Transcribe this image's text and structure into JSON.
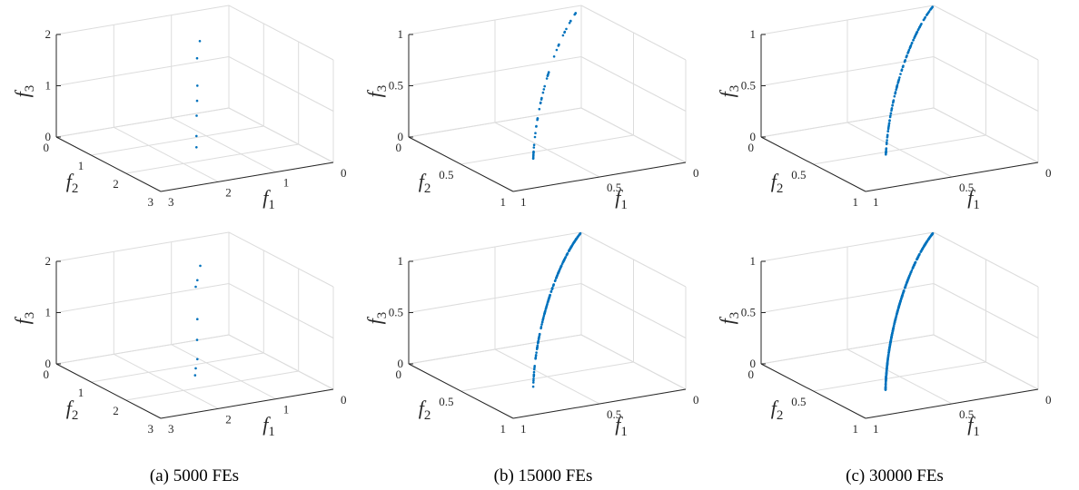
{
  "captions": [
    "(a) 5000 FEs",
    "(b) 15000 FEs",
    "(c) 30000 FEs"
  ],
  "colors": {
    "points": "#0072BD",
    "grid": "#dcdcdc",
    "axis": "#262626"
  },
  "chart_data": [
    {
      "type": "scatter",
      "projection": "3d",
      "row": 0,
      "col": 0,
      "xlabel": "f1",
      "ylabel": "f2",
      "zlabel": "f3",
      "xlim": [
        0,
        3
      ],
      "ylim": [
        0,
        3
      ],
      "zlim": [
        0,
        2
      ],
      "xticks": [
        0,
        1,
        2,
        3
      ],
      "yticks": [
        0,
        1,
        2,
        3
      ],
      "zticks": [
        0,
        1,
        2
      ],
      "grid": true,
      "points": [
        [
          1.43,
          1.43,
          0.01
        ],
        [
          1.43,
          1.43,
          0.23
        ],
        [
          1.42,
          1.42,
          0.62
        ],
        [
          1.4,
          1.4,
          0.9
        ],
        [
          1.39,
          1.39,
          1.19
        ],
        [
          1.4,
          1.4,
          1.73
        ],
        [
          1.28,
          1.28,
          2.0
        ]
      ]
    },
    {
      "type": "scatter",
      "projection": "3d",
      "row": 0,
      "col": 1,
      "xlabel": "f1",
      "ylabel": "f2",
      "zlabel": "f3",
      "xlim": [
        0,
        1
      ],
      "ylim": [
        0,
        1
      ],
      "zlim": [
        0,
        1
      ],
      "xticks": [
        0,
        0.5,
        1
      ],
      "yticks": [
        0,
        0.5,
        1
      ],
      "zticks": [
        0,
        0.5,
        1
      ],
      "grid": true,
      "arc": {
        "count": 48,
        "start": 3,
        "end": 85,
        "gamma": 1.3,
        "seed": 7
      }
    },
    {
      "type": "scatter",
      "projection": "3d",
      "row": 0,
      "col": 2,
      "xlabel": "f1",
      "ylabel": "f2",
      "zlabel": "f3",
      "xlim": [
        0,
        1
      ],
      "ylim": [
        0,
        1
      ],
      "zlim": [
        0,
        1
      ],
      "xticks": [
        0,
        0.5,
        1
      ],
      "yticks": [
        0,
        0.5,
        1
      ],
      "zticks": [
        0,
        0.5,
        1
      ],
      "grid": true,
      "arc": {
        "count": 120,
        "start": 2,
        "end": 89,
        "gamma": 0.8,
        "seed": 11
      }
    },
    {
      "type": "scatter",
      "projection": "3d",
      "row": 1,
      "col": 0,
      "xlabel": "f1",
      "ylabel": "f2",
      "zlabel": "f3",
      "xlim": [
        0,
        3
      ],
      "ylim": [
        0,
        3
      ],
      "zlim": [
        0,
        2
      ],
      "xticks": [
        0,
        1,
        2,
        3
      ],
      "yticks": [
        0,
        1,
        2,
        3
      ],
      "zticks": [
        0,
        1,
        2
      ],
      "grid": true,
      "points": [
        [
          1.49,
          1.49,
          0.02
        ],
        [
          1.46,
          1.46,
          0.14
        ],
        [
          1.39,
          1.39,
          0.28
        ],
        [
          1.4,
          1.4,
          0.66
        ],
        [
          1.39,
          1.39,
          1.06
        ],
        [
          1.46,
          1.46,
          1.73
        ],
        [
          1.39,
          1.39,
          1.82
        ],
        [
          1.26,
          1.26,
          2.03
        ]
      ]
    },
    {
      "type": "scatter",
      "projection": "3d",
      "row": 1,
      "col": 1,
      "xlabel": "f1",
      "ylabel": "f2",
      "zlabel": "f3",
      "xlim": [
        0,
        1
      ],
      "ylim": [
        0,
        1
      ],
      "zlim": [
        0,
        1
      ],
      "xticks": [
        0,
        0.5,
        1
      ],
      "yticks": [
        0,
        0.5,
        1
      ],
      "zticks": [
        0,
        0.5,
        1
      ],
      "grid": true,
      "arc": {
        "count": 190,
        "start": 2,
        "end": 89,
        "gamma": 0.7,
        "seed": 3
      }
    },
    {
      "type": "scatter",
      "projection": "3d",
      "row": 1,
      "col": 2,
      "xlabel": "f1",
      "ylabel": "f2",
      "zlabel": "f3",
      "xlim": [
        0,
        1
      ],
      "ylim": [
        0,
        1
      ],
      "zlim": [
        0,
        1
      ],
      "xticks": [
        0,
        0.5,
        1
      ],
      "yticks": [
        0,
        0.5,
        1
      ],
      "zticks": [
        0,
        0.5,
        1
      ],
      "grid": true,
      "arc": {
        "count": 400,
        "start": 2,
        "end": 89.5,
        "gamma": 1.0,
        "seed": 5
      }
    }
  ]
}
